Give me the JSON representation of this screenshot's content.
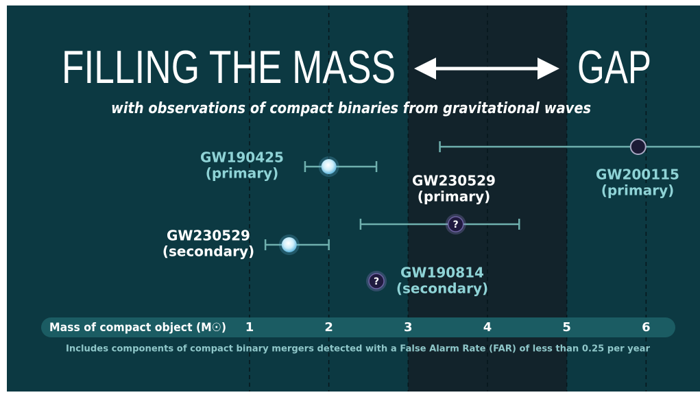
{
  "chart_data": {
    "type": "errorbar",
    "title": [
      "FILLING THE MASS",
      "GAP"
    ],
    "subtitle": "with observations of compact binaries from gravitational waves",
    "xlabel": "Mass of compact object (M☉)",
    "footnote": "Includes components of compact binary mergers detected with a False Alarm Rate (FAR) of less than 0.25 per year",
    "xlim": [
      -2.06,
      6.68
    ],
    "xticks": [
      1,
      2,
      3,
      4,
      5,
      6
    ],
    "gap": [
      3,
      5
    ],
    "grid": true,
    "series": [
      {
        "name": "GW190425",
        "role": "(primary)",
        "value": 2.0,
        "low": 1.7,
        "high": 2.6,
        "marker": "light",
        "color": "#8fd3d6"
      },
      {
        "name": "GW200115",
        "role": "(primary)",
        "value": 5.9,
        "low": 3.4,
        "high": 6.9,
        "marker": "dark",
        "color": "#8fd3d6"
      },
      {
        "name": "GW230529",
        "role": "(primary)",
        "value": 3.6,
        "low": 2.4,
        "high": 4.4,
        "marker": "unknown",
        "symbol": "?",
        "color": "#ffffff"
      },
      {
        "name": "GW230529",
        "role": "(secondary)",
        "value": 1.5,
        "low": 1.2,
        "high": 2.0,
        "marker": "light",
        "color": "#ffffff"
      },
      {
        "name": "GW190814",
        "role": "(secondary)",
        "value": 2.6,
        "low": 2.55,
        "high": 2.65,
        "marker": "unknown",
        "symbol": "?",
        "color": "#8fd3d6"
      }
    ]
  }
}
